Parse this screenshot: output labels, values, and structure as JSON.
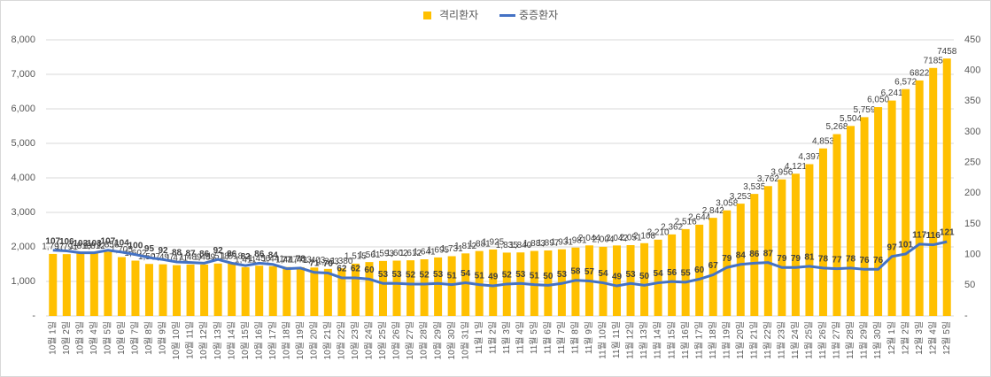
{
  "chart_data": {
    "type": "bar_line",
    "categories": [
      "10월 1일",
      "10월 2일",
      "10월 3일",
      "10월 4일",
      "10월 5일",
      "10월 6일",
      "10월 7일",
      "10월 8일",
      "10월 9일",
      "10월 10일",
      "10월 11일",
      "10월 12일",
      "10월 13일",
      "10월 14일",
      "10월 15일",
      "10월 16일",
      "10월 17일",
      "10월 18일",
      "10월 19일",
      "10월 20일",
      "10월 21일",
      "10월 22일",
      "10월 23일",
      "10월 24일",
      "10월 25일",
      "10월 26일",
      "10월 27일",
      "10월 28일",
      "10월 29일",
      "10월 30일",
      "10월 31일",
      "11월 1일",
      "11월 2일",
      "11월 3일",
      "11월 4일",
      "11월 5일",
      "11월 6일",
      "11월 7일",
      "11월 8일",
      "11월 9일",
      "11월 10일",
      "11월 11일",
      "11월 12일",
      "11월 13일",
      "11월 14일",
      "11월 15일",
      "11월 16일",
      "11월 17일",
      "11월 18일",
      "11월 19일",
      "11월 20일",
      "11월 21일",
      "11월 22일",
      "11월 23일",
      "11월 24일",
      "11월 25일",
      "11월 26일",
      "11월 27일",
      "11월 28일",
      "11월 29일",
      "11월 30일",
      "12월 1일",
      "12월 2일",
      "12월 3일",
      "12월 4일",
      "12월 5일"
    ],
    "series": [
      {
        "name": "격리환자",
        "kind": "bar",
        "color": "#ffc000",
        "values": [
          1797,
          1791,
          1810,
          1812,
          1856,
          1705,
          1602,
          1507,
          1497,
          1471,
          1489,
          1489,
          1518,
          1518,
          1411,
          1456,
          1441,
          1417,
          1413,
          1403,
          1363,
          1380,
          1515,
          1561,
          1593,
          1602,
          1612,
          1641,
          1695,
          1731,
          1812,
          1881,
          1925,
          1835,
          1840,
          1883,
          1897,
          1931,
          1981,
          2044,
          2004,
          2042,
          2051,
          2108,
          2210,
          2362,
          2516,
          2644,
          2842,
          3058,
          3253,
          3535,
          3762,
          3956,
          4121,
          4397,
          4853,
          5268,
          5504,
          5759,
          6050,
          6241,
          6572,
          6822,
          7185,
          7458
        ],
        "value_labels": [
          "1,797",
          "1,791",
          "1,810",
          "1,812",
          "1,856",
          "1,705",
          "1,602",
          "1,507",
          "1,497",
          "1,471",
          "1,489",
          "1,489",
          "1,518",
          "1,518",
          "1,411",
          "1,456",
          "1,441",
          "1,417",
          "1,413",
          "1,403",
          "1,363",
          "1,380",
          "1,515",
          "1,561",
          "1,593",
          "1,602",
          "1,612",
          "1,641",
          "1,695",
          "1,731",
          "1,812",
          "1,881",
          "1,925",
          "1,835",
          "1,840",
          "1,883",
          "1,897",
          "1,931",
          "1,981",
          "2,044",
          "2,004",
          "2,042",
          "2,051",
          "2,108",
          "2,210",
          "2,362",
          "2,516",
          "2,644",
          "2,842",
          "3,058",
          "3,253",
          "3,535",
          "3,762",
          "3,956",
          "4,121",
          "4,397",
          "4,853",
          "5,268",
          "5,504",
          "5,759",
          "6,050",
          "6,241",
          "6,572",
          "6822",
          "7185",
          "7458"
        ]
      },
      {
        "name": "중증환자",
        "kind": "line",
        "axis": "y2",
        "color": "#4472c4",
        "values": [
          107,
          106,
          103,
          103,
          107,
          104,
          100,
          95,
          92,
          88,
          87,
          86,
          92,
          86,
          82,
          86,
          84,
          77,
          78,
          71,
          70,
          62,
          62,
          60,
          53,
          53,
          52,
          52,
          53,
          51,
          54,
          51,
          49,
          52,
          53,
          51,
          50,
          53,
          58,
          57,
          54,
          49,
          53,
          50,
          54,
          56,
          55,
          60,
          67,
          79,
          84,
          86,
          87,
          79,
          79,
          81,
          78,
          77,
          78,
          76,
          76,
          97,
          101,
          117,
          116,
          121
        ]
      }
    ],
    "ylim": [
      0,
      8000
    ],
    "yticks": [
      {
        "value": 0,
        "label": "-"
      },
      {
        "value": 1000,
        "label": "1,000"
      },
      {
        "value": 2000,
        "label": "2,000"
      },
      {
        "value": 3000,
        "label": "3,000"
      },
      {
        "value": 4000,
        "label": "4,000"
      },
      {
        "value": 5000,
        "label": "5,000"
      },
      {
        "value": 6000,
        "label": "6,000"
      },
      {
        "value": 7000,
        "label": "7,000"
      },
      {
        "value": 8000,
        "label": "8,000"
      }
    ],
    "y2lim": [
      0,
      450
    ],
    "y2ticks": [
      {
        "value": 0,
        "label": "-"
      },
      50,
      100,
      150,
      200,
      250,
      300,
      350,
      400,
      450
    ],
    "grid": true,
    "legend": "top"
  }
}
